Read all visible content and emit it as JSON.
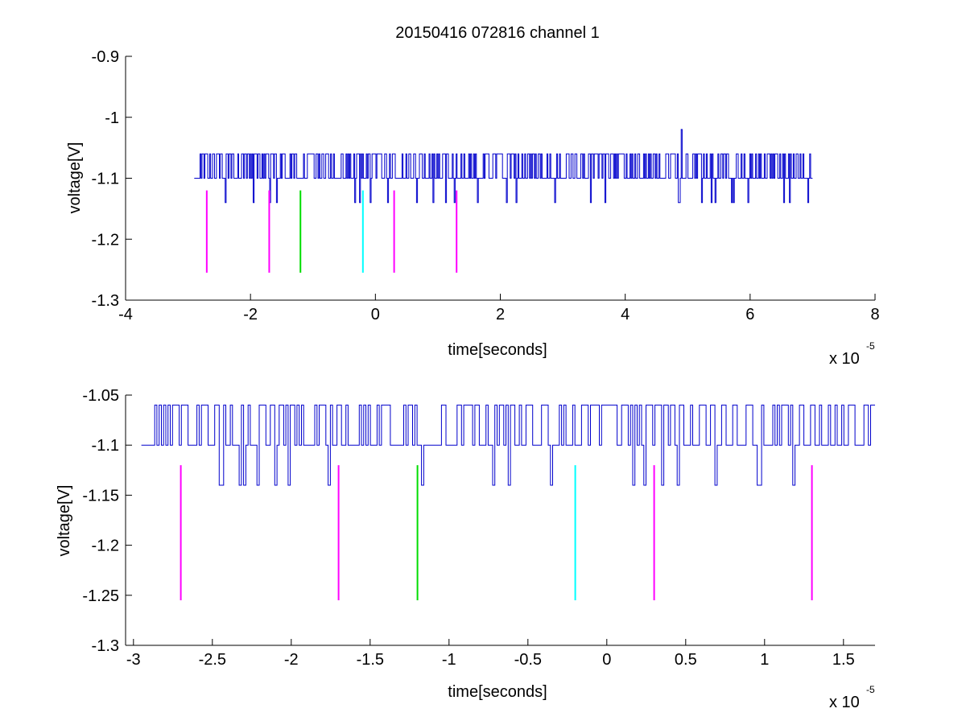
{
  "figure": {
    "title": "20150416 072816 channel 1"
  },
  "chart_data": [
    {
      "type": "line",
      "xlabel": "time[seconds]",
      "ylabel": "voltage[V]",
      "x_multiplier": "x 10",
      "x_exponent": "-5",
      "xlim": [
        -4,
        8
      ],
      "ylim": [
        -1.3,
        -0.9
      ],
      "xticks": [
        -4,
        -2,
        0,
        2,
        4,
        6,
        8
      ],
      "xtick_labels": [
        "-4",
        "-2",
        "0",
        "2",
        "4",
        "6",
        "8"
      ],
      "yticks": [
        -1.3,
        -1.2,
        -1.1,
        -1,
        -0.9
      ],
      "ytick_labels": [
        "-1.3",
        "-1.2",
        "-1.1",
        "-1",
        "-0.9"
      ],
      "signal_color": "#0000cc",
      "signal": {
        "x_start": -2.9,
        "x_end": 7.0,
        "n": 640,
        "seed": 11,
        "baseline": -1.1,
        "high": -1.06,
        "low": -1.14,
        "spike": {
          "x": 4.9,
          "y": -1.02
        }
      },
      "markers": [
        {
          "x": -2.7,
          "y_top": -1.12,
          "y_bottom": -1.255,
          "color": "#ff00ff"
        },
        {
          "x": -1.7,
          "y_top": -1.12,
          "y_bottom": -1.255,
          "color": "#ff00ff"
        },
        {
          "x": -1.2,
          "y_top": -1.12,
          "y_bottom": -1.255,
          "color": "#00dd00"
        },
        {
          "x": -0.2,
          "y_top": -1.12,
          "y_bottom": -1.255,
          "color": "#00ffff"
        },
        {
          "x": 0.3,
          "y_top": -1.12,
          "y_bottom": -1.255,
          "color": "#ff00ff"
        },
        {
          "x": 1.3,
          "y_top": -1.12,
          "y_bottom": -1.255,
          "color": "#ff00ff"
        }
      ]
    },
    {
      "type": "line",
      "xlabel": "time[seconds]",
      "ylabel": "voltage[V]",
      "x_multiplier": "x 10",
      "x_exponent": "-5",
      "xlim": [
        -3.05,
        1.7
      ],
      "ylim": [
        -1.3,
        -1.05
      ],
      "xticks": [
        -3,
        -2.5,
        -2,
        -1.5,
        -1,
        -0.5,
        0,
        0.5,
        1,
        1.5
      ],
      "xtick_labels": [
        "-3",
        "-2.5",
        "-2",
        "-1.5",
        "-1",
        "-0.5",
        "0",
        "0.5",
        "1",
        "1.5"
      ],
      "yticks": [
        -1.3,
        -1.25,
        -1.2,
        -1.15,
        -1.1,
        -1.05
      ],
      "ytick_labels": [
        "-1.3",
        "-1.25",
        "-1.2",
        "-1.15",
        "-1.1",
        "-1.05"
      ],
      "signal_color": "#0000cc",
      "signal": {
        "x_start": -2.95,
        "x_end": 1.7,
        "n": 330,
        "seed": 23,
        "baseline": -1.1,
        "high": -1.06,
        "low": -1.14,
        "dips": [
          -2.45,
          -2.3,
          -2.22,
          -2.1,
          -1.18,
          -0.72,
          0.16,
          0.23,
          0.69,
          0.96
        ]
      },
      "markers": [
        {
          "x": -2.7,
          "y_top": -1.12,
          "y_bottom": -1.255,
          "color": "#ff00ff"
        },
        {
          "x": -1.7,
          "y_top": -1.12,
          "y_bottom": -1.255,
          "color": "#ff00ff"
        },
        {
          "x": -1.2,
          "y_top": -1.12,
          "y_bottom": -1.255,
          "color": "#00dd00"
        },
        {
          "x": -0.2,
          "y_top": -1.12,
          "y_bottom": -1.255,
          "color": "#00ffff"
        },
        {
          "x": 0.3,
          "y_top": -1.12,
          "y_bottom": -1.255,
          "color": "#ff00ff"
        },
        {
          "x": 1.3,
          "y_top": -1.12,
          "y_bottom": -1.255,
          "color": "#ff00ff"
        }
      ]
    }
  ]
}
